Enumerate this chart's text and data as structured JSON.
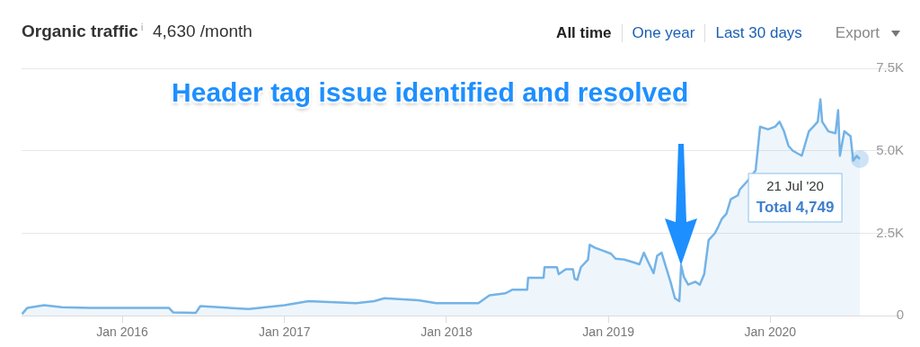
{
  "chart_data": {
    "type": "area",
    "title": "Organic traffic$^{i}$",
    "subtitle": "4,630 /month",
    "annotations": [
      "All time",
      "One year",
      "Last 30 days",
      "Export",
      "Header tag issue identified and resolved",
      "21 Jul '20",
      "Total 4,749"
    ],
    "series": [
      {
        "color": "#74b3e6",
        "x": [
          "2015-05-20",
          "2015-06-01",
          "2015-07-09",
          "2015-08-18",
          "2015-10-20",
          "2016-01-01",
          "2016-04-15",
          "2016-04-25",
          "2016-06-15",
          "2016-06-25",
          "2016-10-12",
          "2017-01-01",
          "2017-02-24",
          "2017-06-11",
          "2017-07-22",
          "2017-08-14",
          "2017-10-30",
          "2017-12-09",
          "2018-03-14",
          "2018-04-08",
          "2018-05-14",
          "2018-05-30",
          "2018-07-02",
          "2018-07-04",
          "2018-08-08",
          "2018-08-10",
          "2018-09-07",
          "2018-09-11",
          "2018-09-27",
          "2018-10-13",
          "2018-10-17",
          "2018-10-23",
          "2018-10-31",
          "2018-11-16",
          "2018-11-20",
          "2018-12-02",
          "2018-12-20",
          "2019-01-07",
          "2019-01-17",
          "2019-02-06",
          "2019-02-26",
          "2019-03-12",
          "2019-03-22",
          "2019-04-01",
          "2019-04-13",
          "2019-04-21",
          "2019-05-01",
          "2019-05-11",
          "2019-05-21",
          "2019-05-31",
          "2019-06-10",
          "2019-06-14",
          "2019-06-20",
          "2019-06-30",
          "2019-07-16",
          "2019-07-26",
          "2019-08-05",
          "2019-08-15",
          "2019-08-29",
          "2019-09-04",
          "2019-09-14",
          "2019-09-24",
          "2019-10-04",
          "2019-10-20",
          "2019-10-24",
          "2019-11-13",
          "2019-11-29",
          "2019-12-09",
          "2019-12-27",
          "2020-01-12",
          "2020-01-22",
          "2020-02-01",
          "2020-02-11",
          "2020-02-21",
          "2020-03-12",
          "2020-03-28",
          "2020-04-07",
          "2020-04-17",
          "2020-04-23",
          "2020-04-27",
          "2020-05-11",
          "2020-05-27",
          "2020-06-02",
          "2020-06-06",
          "2020-06-16",
          "2020-06-30",
          "2020-07-06",
          "2020-07-14",
          "2020-07-21"
        ],
        "values": [
          50,
          240,
          320,
          260,
          240,
          240,
          240,
          100,
          90,
          290,
          200,
          320,
          440,
          380,
          440,
          530,
          470,
          380,
          380,
          620,
          680,
          790,
          790,
          1150,
          1150,
          1470,
          1470,
          1260,
          1410,
          1410,
          1120,
          1090,
          1470,
          1700,
          2150,
          2060,
          1970,
          1880,
          1730,
          1700,
          1620,
          1560,
          1910,
          1620,
          1290,
          1820,
          1910,
          1470,
          1030,
          530,
          440,
          1530,
          1180,
          940,
          1030,
          940,
          1260,
          2290,
          2500,
          2650,
          2940,
          3090,
          3530,
          3650,
          3820,
          4120,
          4410,
          5730,
          5650,
          5730,
          5880,
          5590,
          5150,
          5000,
          4850,
          5590,
          5730,
          5880,
          6560,
          5880,
          5590,
          5530,
          6230,
          4850,
          5590,
          5440,
          4700,
          4850,
          4749
        ]
      }
    ],
    "xlim": [
      "2015-05-19",
      "2020-10-20"
    ],
    "xticks": [
      {
        "value": "2016-01-01",
        "label": "Jan 2016"
      },
      {
        "value": "2017-01-01",
        "label": "Jan 2017"
      },
      {
        "value": "2018-01-01",
        "label": "Jan 2018"
      },
      {
        "value": "2019-01-01",
        "label": "Jan 2019"
      },
      {
        "value": "2020-01-01",
        "label": "Jan 2020"
      }
    ],
    "ylim": [
      0,
      7500
    ],
    "yticks": [
      0,
      {
        "value": 2500,
        "label": "2.5K"
      },
      {
        "value": 5000,
        "label": "5.0K"
      },
      {
        "value": 7500,
        "label": "7.5K"
      }
    ],
    "grid": "y",
    "legend": false,
    "marker": "none",
    "line_style": "solid"
  }
}
